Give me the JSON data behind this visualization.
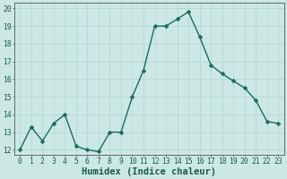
{
  "x": [
    0,
    1,
    2,
    3,
    4,
    5,
    6,
    7,
    8,
    9,
    10,
    11,
    12,
    13,
    14,
    15,
    16,
    17,
    18,
    19,
    20,
    21,
    22,
    23
  ],
  "y": [
    12.0,
    13.3,
    12.5,
    13.5,
    14.0,
    12.2,
    12.0,
    11.9,
    13.0,
    13.0,
    15.0,
    16.5,
    19.0,
    19.0,
    19.4,
    19.8,
    18.4,
    16.8,
    16.3,
    15.9,
    15.5,
    14.8,
    13.6,
    13.5
  ],
  "line_color": "#1a6b5a",
  "marker": "D",
  "marker_size": 2.5,
  "bg_color": "#cce8e4",
  "grid_color": "#b0d4cf",
  "xlabel": "Humidex (Indice chaleur)",
  "ylim": [
    11.7,
    20.3
  ],
  "xlim": [
    -0.5,
    23.5
  ],
  "yticks": [
    12,
    13,
    14,
    15,
    16,
    17,
    18,
    19,
    20
  ],
  "xticks": [
    0,
    1,
    2,
    3,
    4,
    5,
    6,
    7,
    8,
    9,
    10,
    11,
    12,
    13,
    14,
    15,
    16,
    17,
    18,
    19,
    20,
    21,
    22,
    23
  ],
  "tick_fontsize": 5.8,
  "xlabel_fontsize": 7.5,
  "tick_color": "#1a5a4a",
  "line_width": 1.0,
  "spine_color": "#555555"
}
